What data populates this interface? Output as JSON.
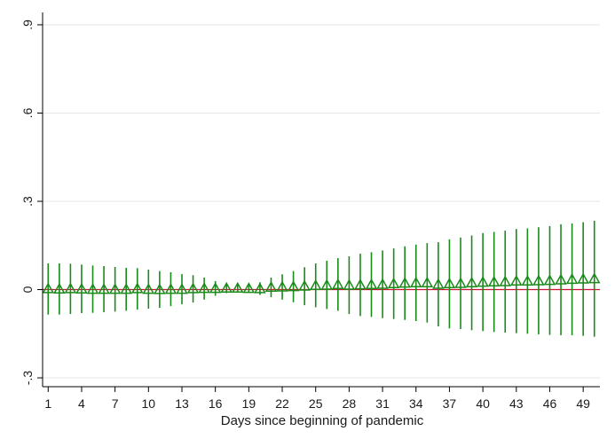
{
  "chart_data": {
    "type": "scatter",
    "title": "",
    "xlabel": "Days since beginning of pandemic",
    "ylabel": "",
    "xlim": [
      0.5,
      50.5
    ],
    "ylim": [
      -0.33,
      0.93
    ],
    "x_ticks": [
      1,
      4,
      7,
      10,
      13,
      16,
      19,
      22,
      25,
      28,
      31,
      34,
      37,
      40,
      43,
      46,
      49
    ],
    "y_ticks": [
      -0.3,
      0,
      0.3,
      0.6,
      0.9
    ],
    "y_tick_labels": [
      "-.3",
      "0",
      ".3",
      ".6",
      ".9"
    ],
    "grid": true,
    "reference_line": {
      "y": 0,
      "color": "#d01030"
    },
    "colors": {
      "series": "#1a8a1a",
      "grid": "#e6e6e6",
      "axis": "#000000"
    },
    "marker": "triangle-hollow",
    "series": [
      {
        "x": [
          1,
          2,
          3,
          4,
          5,
          6,
          7,
          8,
          9,
          10,
          11,
          12,
          13,
          14,
          15,
          16,
          17,
          18,
          19,
          20,
          21,
          22,
          23,
          24,
          25,
          26,
          27,
          28,
          29,
          30,
          31,
          32,
          33,
          34,
          35,
          36,
          37,
          38,
          39,
          40,
          41,
          42,
          43,
          44,
          45,
          46,
          47,
          48,
          49,
          50
        ],
        "y": [
          0.003,
          0.002,
          0.003,
          0.002,
          0.001,
          0.001,
          0.001,
          0.001,
          0.003,
          0.001,
          0.0,
          0.001,
          0.001,
          0.003,
          0.004,
          0.004,
          0.005,
          0.005,
          0.004,
          0.003,
          0.008,
          0.009,
          0.01,
          0.012,
          0.014,
          0.015,
          0.017,
          0.015,
          0.016,
          0.017,
          0.018,
          0.02,
          0.022,
          0.023,
          0.023,
          0.018,
          0.02,
          0.021,
          0.023,
          0.025,
          0.026,
          0.027,
          0.029,
          0.029,
          0.03,
          0.031,
          0.033,
          0.035,
          0.036,
          0.037
        ],
        "lower": [
          -0.085,
          -0.085,
          -0.083,
          -0.08,
          -0.079,
          -0.077,
          -0.075,
          -0.072,
          -0.068,
          -0.065,
          -0.062,
          -0.056,
          -0.05,
          -0.044,
          -0.034,
          -0.021,
          -0.012,
          -0.01,
          -0.011,
          -0.018,
          -0.026,
          -0.034,
          -0.043,
          -0.053,
          -0.06,
          -0.066,
          -0.072,
          -0.083,
          -0.09,
          -0.093,
          -0.097,
          -0.1,
          -0.103,
          -0.107,
          -0.112,
          -0.125,
          -0.132,
          -0.134,
          -0.138,
          -0.141,
          -0.144,
          -0.146,
          -0.148,
          -0.15,
          -0.152,
          -0.154,
          -0.155,
          -0.155,
          -0.157,
          -0.16
        ],
        "upper": [
          0.089,
          0.089,
          0.088,
          0.085,
          0.082,
          0.08,
          0.077,
          0.074,
          0.073,
          0.068,
          0.063,
          0.059,
          0.053,
          0.049,
          0.041,
          0.029,
          0.021,
          0.019,
          0.019,
          0.025,
          0.041,
          0.052,
          0.063,
          0.076,
          0.089,
          0.098,
          0.107,
          0.113,
          0.122,
          0.127,
          0.133,
          0.14,
          0.147,
          0.153,
          0.158,
          0.161,
          0.171,
          0.177,
          0.184,
          0.192,
          0.196,
          0.2,
          0.206,
          0.208,
          0.212,
          0.216,
          0.222,
          0.225,
          0.229,
          0.234
        ]
      }
    ]
  }
}
